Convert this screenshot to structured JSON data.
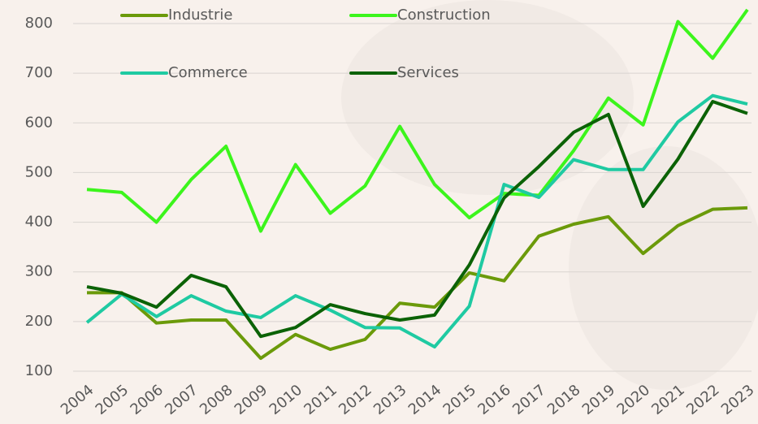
{
  "chart_data": {
    "type": "line",
    "categories": [
      "2004",
      "2005",
      "2006",
      "2007",
      "2008",
      "2009",
      "2010",
      "2011",
      "2012",
      "2013",
      "2014",
      "2015",
      "2016",
      "2017",
      "2018",
      "2019",
      "2020",
      "2021",
      "2022",
      "2023"
    ],
    "series": [
      {
        "name": "Industrie",
        "color": "#6b9a0a",
        "values": [
          258,
          258,
          197,
          203,
          203,
          126,
          174,
          144,
          164,
          237,
          229,
          298,
          282,
          372,
          396,
          411,
          337,
          393,
          426,
          429
        ]
      },
      {
        "name": "Construction",
        "color": "#3cf51c",
        "values": [
          466,
          460,
          400,
          486,
          553,
          382,
          516,
          418,
          473,
          593,
          476,
          409,
          458,
          454,
          544,
          650,
          596,
          804,
          730,
          828
        ]
      },
      {
        "name": "Commerce",
        "color": "#1fcaa2",
        "values": [
          198,
          255,
          210,
          252,
          221,
          208,
          252,
          223,
          188,
          187,
          149,
          231,
          476,
          450,
          526,
          506,
          506,
          602,
          655,
          638
        ]
      },
      {
        "name": "Services",
        "color": "#0b6206",
        "values": [
          270,
          257,
          229,
          293,
          270,
          170,
          188,
          234,
          216,
          203,
          213,
          314,
          449,
          512,
          581,
          617,
          432,
          527,
          643,
          619
        ]
      }
    ],
    "ylim": [
      90,
      840
    ],
    "yticks": [
      100,
      200,
      300,
      400,
      500,
      600,
      700,
      800
    ],
    "grid": true
  }
}
